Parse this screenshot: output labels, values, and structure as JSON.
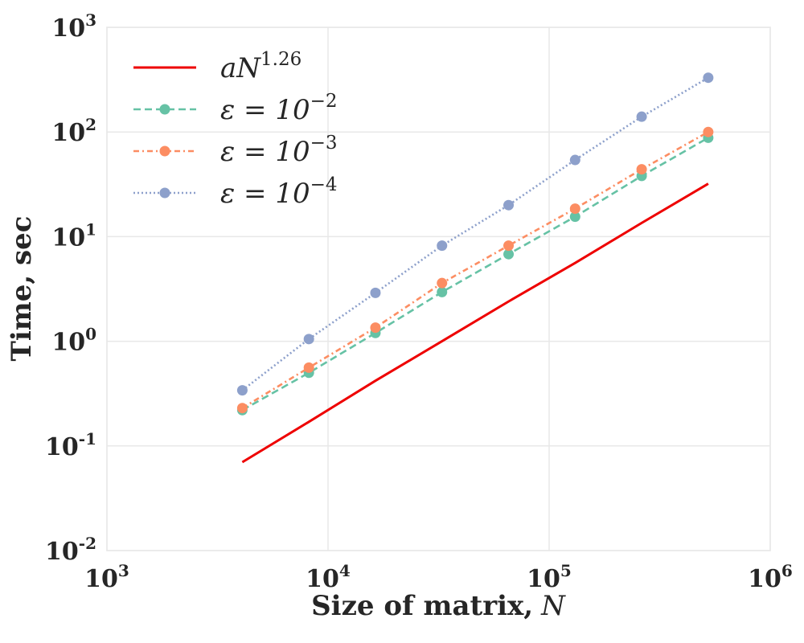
{
  "chart_data": {
    "type": "line",
    "scale": "log-log",
    "xlabel": "Size of matrix,",
    "xlabel_var": "N",
    "ylabel": "Time, sec",
    "xlim": [
      1000,
      1000000
    ],
    "ylim": [
      0.01,
      1000
    ],
    "grid": true,
    "legend_placement": "top-left",
    "x_ticks": [
      {
        "value": 1000,
        "base": "10",
        "exp": "3"
      },
      {
        "value": 10000,
        "base": "10",
        "exp": "4"
      },
      {
        "value": 100000,
        "base": "10",
        "exp": "5"
      },
      {
        "value": 1000000,
        "base": "10",
        "exp": "6"
      }
    ],
    "y_ticks": [
      {
        "value": 0.01,
        "base": "10",
        "exp": "-2"
      },
      {
        "value": 0.1,
        "base": "10",
        "exp": "-1"
      },
      {
        "value": 1,
        "base": "10",
        "exp": "0"
      },
      {
        "value": 10,
        "base": "10",
        "exp": "1"
      },
      {
        "value": 100,
        "base": "10",
        "exp": "2"
      },
      {
        "value": 1000,
        "base": "10",
        "exp": "3"
      }
    ],
    "x": [
      4096,
      8192,
      16384,
      32768,
      65536,
      131072,
      262144,
      524288
    ],
    "series": [
      {
        "name": "aN^{1.26}",
        "legend_base": "aN",
        "legend_exp": "1.26",
        "color": "#ee0000",
        "style": "solid",
        "markers": false,
        "values": [
          0.07,
          0.17,
          0.42,
          1.0,
          2.4,
          5.6,
          13.5,
          32
        ]
      },
      {
        "name": "ε = 10^-2",
        "legend_base": "ε = 10",
        "legend_exp": "−2",
        "color": "#66c2a5",
        "style": "dashed",
        "markers": true,
        "values": [
          0.22,
          0.5,
          1.2,
          2.95,
          6.8,
          15.5,
          38,
          88
        ]
      },
      {
        "name": "ε = 10^-3",
        "legend_base": "ε = 10",
        "legend_exp": "−3",
        "color": "#fc8d62",
        "style": "dashdot",
        "markers": true,
        "values": [
          0.23,
          0.56,
          1.35,
          3.6,
          8.2,
          18.5,
          44,
          100
        ]
      },
      {
        "name": "ε = 10^-4",
        "legend_base": "ε = 10",
        "legend_exp": "−4",
        "color": "#8da0cb",
        "style": "dotted",
        "markers": true,
        "values": [
          0.34,
          1.05,
          2.9,
          8.2,
          20,
          54,
          140,
          330
        ]
      }
    ]
  }
}
